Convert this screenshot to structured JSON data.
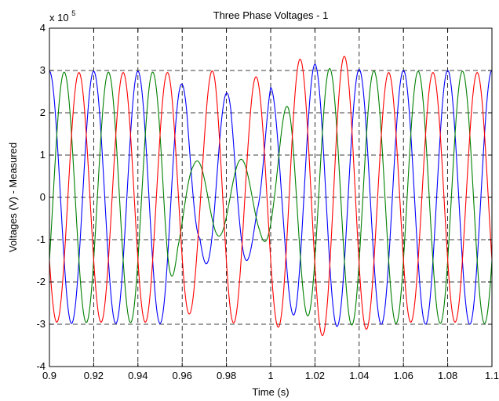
{
  "chart_data": {
    "type": "line",
    "title": "Three Phase Voltages - 1",
    "xlabel": "Time (s)",
    "ylabel": "Voltages (V) - Measured",
    "y_exponent_base": "x 10",
    "y_exponent_power": "5",
    "y_scale_factor": 100000,
    "xlim": [
      0.9,
      1.1
    ],
    "ylim": [
      -4,
      4
    ],
    "grid": true,
    "x_ticks": [
      0.9,
      0.92,
      0.94,
      0.96,
      0.98,
      1.0,
      1.02,
      1.04,
      1.06,
      1.08,
      1.1
    ],
    "x_tick_labels": [
      "0.9",
      "0.92",
      "0.94",
      "0.96",
      "0.98",
      "1",
      "1.02",
      "1.04",
      "1.06",
      "1.08",
      "1.1"
    ],
    "y_ticks": [
      -4,
      -3,
      -2,
      -1,
      0,
      1,
      2,
      3,
      4
    ],
    "y_tick_labels": [
      "-4",
      "-3",
      "-2",
      "-1",
      "0",
      "1",
      "2",
      "3",
      "4"
    ],
    "frequency_hz": 50,
    "series": [
      {
        "color": "#0000ff",
        "phase_deg": 90,
        "x": [
          0.9,
          0.955,
          0.962,
          0.968,
          0.975,
          0.982,
          0.988,
          0.994,
          1.0,
          1.006,
          1.012,
          1.02,
          1.03,
          1.05,
          1.1
        ],
        "amplitude": [
          2.98,
          2.98,
          2.55,
          1.2,
          2.25,
          2.55,
          1.7,
          0.9,
          2.6,
          2.4,
          2.95,
          3.15,
          3.05,
          3.0,
          3.0
        ]
      },
      {
        "color": "#008000",
        "phase_deg": -30,
        "x": [
          0.9,
          0.952,
          0.958,
          0.965,
          0.975,
          0.985,
          0.995,
          1.002,
          1.01,
          1.025,
          1.05,
          1.1
        ],
        "amplitude": [
          2.96,
          2.96,
          1.3,
          0.85,
          0.92,
          0.9,
          0.9,
          1.4,
          2.6,
          3.05,
          2.98,
          2.98
        ]
      },
      {
        "color": "#ff0000",
        "phase_deg": 210,
        "x": [
          0.9,
          0.955,
          0.962,
          0.968,
          0.975,
          0.982,
          0.99,
          1.0,
          1.01,
          1.02,
          1.03,
          1.04,
          1.05,
          1.1
        ],
        "amplitude": [
          2.95,
          2.95,
          2.8,
          2.6,
          3.1,
          3.0,
          2.8,
          2.95,
          3.3,
          3.2,
          3.4,
          3.2,
          2.95,
          2.95
        ]
      }
    ]
  }
}
